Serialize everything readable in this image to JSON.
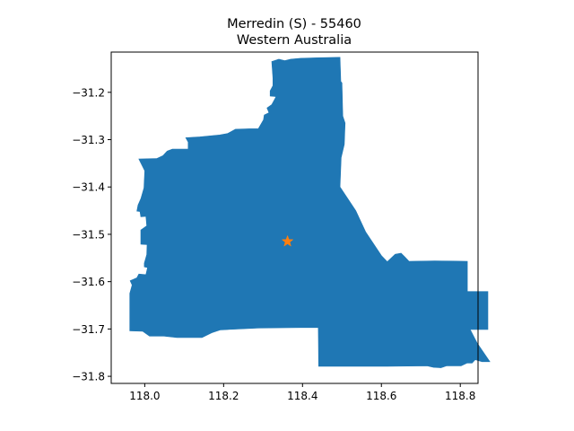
{
  "chart_data": {
    "type": "map",
    "title_line1": "Merredin (S) - 55460",
    "title_line2": "Western Australia",
    "xlim": [
      117.915,
      118.845
    ],
    "ylim": [
      -31.815,
      -31.115
    ],
    "x_ticks": [
      {
        "value": 118.0,
        "label": "118.0"
      },
      {
        "value": 118.2,
        "label": "118.2"
      },
      {
        "value": 118.4,
        "label": "118.4"
      },
      {
        "value": 118.6,
        "label": "118.6"
      },
      {
        "value": 118.8,
        "label": "118.8"
      }
    ],
    "y_ticks": [
      {
        "value": -31.2,
        "label": "−31.2"
      },
      {
        "value": -31.3,
        "label": "−31.3"
      },
      {
        "value": -31.4,
        "label": "−31.4"
      },
      {
        "value": -31.5,
        "label": "−31.5"
      },
      {
        "value": -31.6,
        "label": "−31.6"
      },
      {
        "value": -31.7,
        "label": "−31.7"
      },
      {
        "value": -31.8,
        "label": "−31.8"
      }
    ],
    "region": {
      "name": "Merredin (S)",
      "fill_color": "#1f77b4",
      "boundary": [
        [
          118.322,
          -31.135
        ],
        [
          118.34,
          -31.13
        ],
        [
          118.355,
          -31.133
        ],
        [
          118.37,
          -31.13
        ],
        [
          118.395,
          -31.128
        ],
        [
          118.44,
          -31.127
        ],
        [
          118.495,
          -31.126
        ],
        [
          118.497,
          -31.177
        ],
        [
          118.5,
          -31.18
        ],
        [
          118.502,
          -31.25
        ],
        [
          118.508,
          -31.265
        ],
        [
          118.506,
          -31.31
        ],
        [
          118.498,
          -31.338
        ],
        [
          118.495,
          -31.4
        ],
        [
          118.535,
          -31.45
        ],
        [
          118.56,
          -31.495
        ],
        [
          118.6,
          -31.545
        ],
        [
          118.615,
          -31.558
        ],
        [
          118.635,
          -31.542
        ],
        [
          118.65,
          -31.54
        ],
        [
          118.66,
          -31.548
        ],
        [
          118.67,
          -31.557
        ],
        [
          118.735,
          -31.556
        ],
        [
          118.818,
          -31.557
        ],
        [
          118.818,
          -31.621
        ],
        [
          118.87,
          -31.621
        ],
        [
          118.87,
          -31.701
        ],
        [
          118.825,
          -31.701
        ],
        [
          118.843,
          -31.73
        ],
        [
          118.875,
          -31.769
        ],
        [
          118.855,
          -31.769
        ],
        [
          118.838,
          -31.765
        ],
        [
          118.83,
          -31.772
        ],
        [
          118.817,
          -31.772
        ],
        [
          118.802,
          -31.778
        ],
        [
          118.765,
          -31.778
        ],
        [
          118.751,
          -31.782
        ],
        [
          118.732,
          -31.781
        ],
        [
          118.716,
          -31.778
        ],
        [
          118.616,
          -31.779
        ],
        [
          118.517,
          -31.779
        ],
        [
          118.441,
          -31.779
        ],
        [
          118.44,
          -31.697
        ],
        [
          118.395,
          -31.697
        ],
        [
          118.29,
          -31.698
        ],
        [
          118.192,
          -31.702
        ],
        [
          118.17,
          -31.708
        ],
        [
          118.145,
          -31.718
        ],
        [
          118.082,
          -31.718
        ],
        [
          118.048,
          -31.715
        ],
        [
          118.012,
          -31.715
        ],
        [
          117.995,
          -31.705
        ],
        [
          117.962,
          -31.704
        ],
        [
          117.962,
          -31.625
        ],
        [
          117.968,
          -31.607
        ],
        [
          117.963,
          -31.598
        ],
        [
          117.98,
          -31.592
        ],
        [
          117.985,
          -31.584
        ],
        [
          118.001,
          -31.585
        ],
        [
          118.003,
          -31.585
        ],
        [
          118.007,
          -31.57
        ],
        [
          117.999,
          -31.569
        ],
        [
          117.999,
          -31.561
        ],
        [
          118.005,
          -31.543
        ],
        [
          118.006,
          -31.522
        ],
        [
          117.99,
          -31.521
        ],
        [
          117.99,
          -31.491
        ],
        [
          118.005,
          -31.482
        ],
        [
          118.003,
          -31.462
        ],
        [
          117.99,
          -31.463
        ],
        [
          117.988,
          -31.452
        ],
        [
          117.98,
          -31.451
        ],
        [
          117.983,
          -31.438
        ],
        [
          117.99,
          -31.425
        ],
        [
          117.998,
          -31.402
        ],
        [
          118.0,
          -31.366
        ],
        [
          117.985,
          -31.341
        ],
        [
          118.03,
          -31.34
        ],
        [
          118.046,
          -31.334
        ],
        [
          118.057,
          -31.324
        ],
        [
          118.07,
          -31.32
        ],
        [
          118.11,
          -31.32
        ],
        [
          118.11,
          -31.305
        ],
        [
          118.104,
          -31.296
        ],
        [
          118.14,
          -31.294
        ],
        [
          118.19,
          -31.29
        ],
        [
          118.21,
          -31.287
        ],
        [
          118.23,
          -31.278
        ],
        [
          118.265,
          -31.277
        ],
        [
          118.288,
          -31.277
        ],
        [
          118.301,
          -31.258
        ],
        [
          118.303,
          -31.248
        ],
        [
          118.315,
          -31.243
        ],
        [
          118.31,
          -31.233
        ],
        [
          118.322,
          -31.226
        ],
        [
          118.333,
          -31.209
        ],
        [
          118.318,
          -31.208
        ],
        [
          118.318,
          -31.197
        ],
        [
          118.325,
          -31.186
        ],
        [
          118.325,
          -31.17
        ]
      ]
    },
    "marker": {
      "symbol": "star",
      "x": 118.362,
      "y": -31.515,
      "color": "#ff7f0e"
    }
  }
}
